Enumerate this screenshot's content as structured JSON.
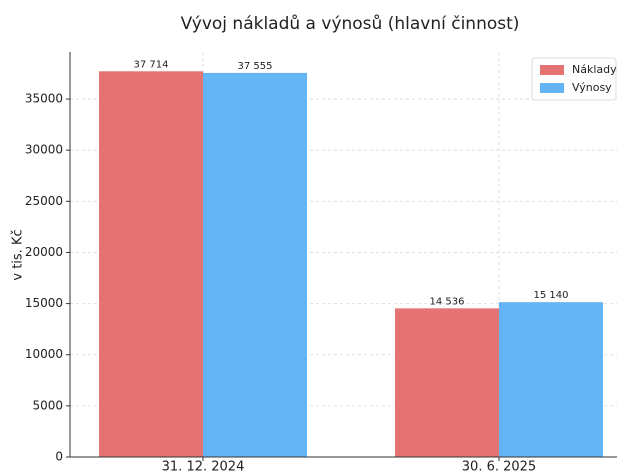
{
  "chart_data": {
    "type": "bar",
    "title": "Vývoj nákladů a výnosů (hlavní činnost)",
    "y_label": "v tis. Kč",
    "categories": [
      "31. 12. 2024",
      "30. 6. 2025"
    ],
    "series": [
      {
        "name": "Náklady",
        "color": "#e57373",
        "values": [
          37714,
          14536
        ],
        "value_labels": [
          "37 714",
          "14 536"
        ]
      },
      {
        "name": "Výnosy",
        "color": "#64b5f6",
        "values": [
          37555,
          15140
        ],
        "value_labels": [
          "37 555",
          "15 140"
        ]
      }
    ],
    "ylim": [
      0,
      39600
    ],
    "yticks": [
      0,
      5000,
      10000,
      15000,
      20000,
      25000,
      30000,
      35000
    ],
    "grid": true,
    "legend": "upper right"
  }
}
